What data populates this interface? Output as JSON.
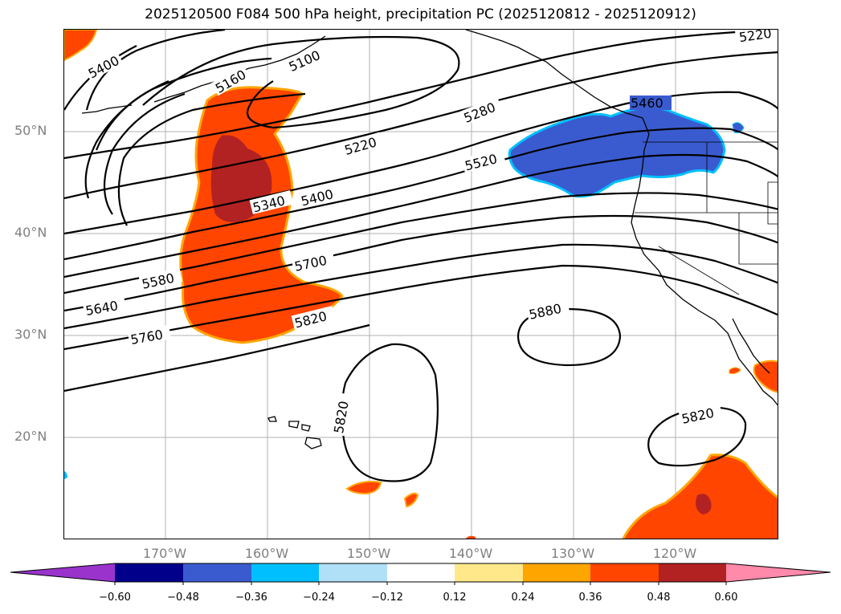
{
  "title": "2025120500 F084 500 hPa height, precipitation PC (2025120812 - 2025120912)",
  "axes": {
    "lat_labels": [
      "50°N",
      "40°N",
      "30°N",
      "20°N"
    ],
    "lon_labels": [
      "170°W",
      "160°W",
      "150°W",
      "140°W",
      "130°W",
      "120°W"
    ]
  },
  "contour_labels": {
    "c5400a": "5400",
    "c5160": "5160",
    "c5100": "5100",
    "c5220": "5220",
    "c5340": "5340",
    "c5400b": "5400",
    "c5280": "5280",
    "c5520": "5520",
    "c5460": "5460",
    "c5220b": "5220",
    "c5580": "5580",
    "c5640": "5640",
    "c5700": "5700",
    "c5760": "5760",
    "c5820a": "5820",
    "c5880": "5880",
    "c5820b": "5820",
    "c5820c": "5820"
  },
  "colorbar": {
    "ticks": [
      "−0.60",
      "−0.48",
      "−0.36",
      "−0.24",
      "−0.12",
      "0.12",
      "0.24",
      "0.36",
      "0.48",
      "0.60"
    ],
    "colors": [
      "#9933cc",
      "#00008b",
      "#3a5bcf",
      "#00bfff",
      "#b0e0f8",
      "#ffffff",
      "#ffe88a",
      "#ffa500",
      "#ff4500",
      "#b22222",
      "#ff8aaa"
    ]
  },
  "fields": {
    "positive_color": "#ff4500",
    "strong_positive_color": "#b22222",
    "negative_color": "#3a5bcf",
    "edge_orange": "#ffa500",
    "edge_yellow": "#ffe88a",
    "edge_cyan": "#00bfff"
  }
}
